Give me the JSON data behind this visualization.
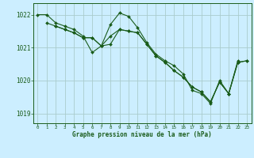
{
  "title": "Graphe pression niveau de la mer (hPa)",
  "bg_color": "#cceeff",
  "plot_bg": "#cceeff",
  "line_color": "#1a5c1a",
  "grid_color": "#aacccc",
  "xlim": [
    -0.5,
    23.5
  ],
  "ylim": [
    1018.7,
    1022.35
  ],
  "yticks": [
    1019,
    1020,
    1021,
    1022
  ],
  "xticks": [
    0,
    1,
    2,
    3,
    4,
    5,
    6,
    7,
    8,
    9,
    10,
    11,
    12,
    13,
    14,
    15,
    16,
    17,
    18,
    19,
    20,
    21,
    22,
    23
  ],
  "line1_x": [
    0,
    1,
    2,
    3,
    4,
    5,
    6,
    7,
    8,
    9,
    10,
    11,
    12,
    13,
    14,
    15,
    16,
    17,
    18,
    19,
    20,
    21,
    22
  ],
  "line1_y": [
    1022.0,
    1022.0,
    1021.75,
    1021.65,
    1021.55,
    1021.35,
    1020.85,
    1021.05,
    1021.7,
    1022.05,
    1021.95,
    1021.6,
    1021.15,
    1020.8,
    1020.6,
    1020.45,
    1020.2,
    1019.7,
    1019.6,
    1019.3,
    1020.0,
    1019.6,
    1020.6
  ],
  "line2_x": [
    1,
    2,
    3,
    4,
    5,
    6,
    7,
    8,
    9,
    10,
    11,
    12,
    13,
    14,
    15,
    16,
    17,
    18,
    19,
    20,
    21,
    22,
    23
  ],
  "line2_y": [
    1021.75,
    1021.65,
    1021.55,
    1021.45,
    1021.3,
    1021.3,
    1021.05,
    1021.35,
    1021.55,
    1021.5,
    1021.45,
    1021.1,
    1020.75,
    1020.55,
    1020.3,
    1020.1,
    1019.8,
    1019.65,
    1019.35,
    1019.95,
    1019.6,
    1020.55,
    1020.6
  ],
  "line3_x": [
    2,
    3,
    4,
    5,
    6,
    7,
    8,
    9,
    10,
    11,
    12,
    13,
    14,
    15,
    16,
    17,
    18,
    19,
    20,
    21,
    22,
    23
  ],
  "line3_y": [
    1021.65,
    1021.55,
    1021.45,
    1021.3,
    1021.3,
    1021.05,
    1021.1,
    1021.55,
    1021.5,
    1021.45,
    1021.1,
    1020.75,
    1020.55,
    1020.3,
    1020.1,
    1019.8,
    1019.65,
    1019.35,
    1019.95,
    1019.6,
    1020.55,
    1020.6
  ]
}
